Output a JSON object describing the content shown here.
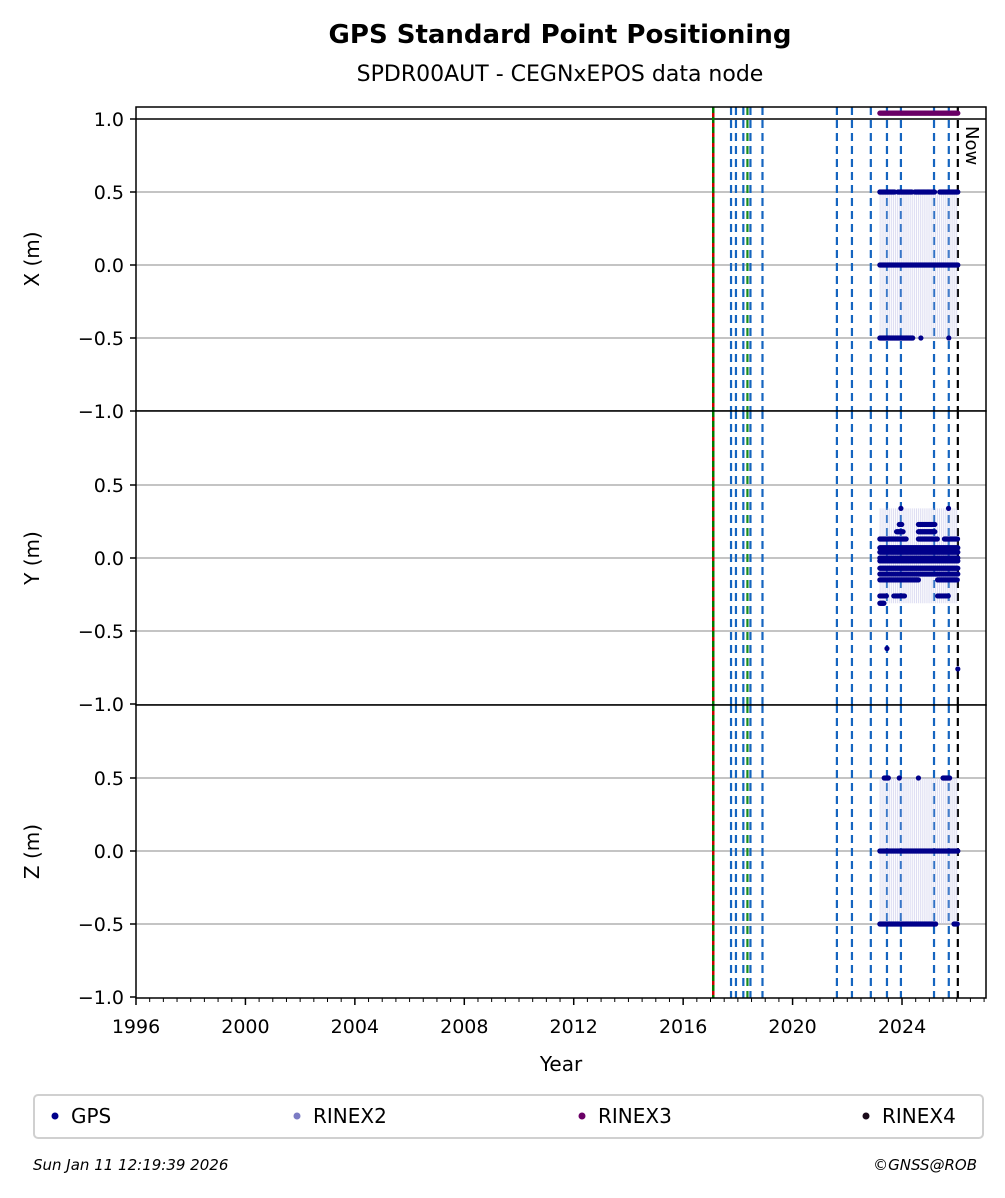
{
  "chart_data": {
    "type": "scatter",
    "title": "GPS Standard Point Positioning",
    "subtitle": "SPDR00AUT - CEGNxEPOS data node",
    "xlabel": "Year",
    "xlim": [
      1996,
      2027.07
    ],
    "xticks": [
      "1996",
      "2000",
      "2004",
      "2008",
      "2012",
      "2016",
      "2020",
      "2024"
    ],
    "xtick_values": [
      1996,
      2000,
      2004,
      2008,
      2012,
      2016,
      2020,
      2024
    ],
    "panels": [
      {
        "ylabel": "X (m)",
        "ylim": [
          -1.0,
          1.08
        ],
        "yticks": [
          "1.0",
          "0.5",
          "0.0",
          "−0.5",
          "−1.0"
        ],
        "ytick_values": [
          1.0,
          0.5,
          0.0,
          -0.5,
          -1.0
        ],
        "gps_segments": [
          {
            "y": 0.0,
            "from": 2023.19,
            "to": 2026.04
          },
          {
            "y": 0.5,
            "from": 2023.19,
            "to": 2023.74
          },
          {
            "y": 0.5,
            "from": 2023.85,
            "to": 2024.36
          },
          {
            "y": 0.5,
            "from": 2024.47,
            "to": 2025.2
          },
          {
            "y": 0.5,
            "from": 2025.38,
            "to": 2026.04
          },
          {
            "y": -0.5,
            "from": 2023.19,
            "to": 2024.4
          },
          {
            "y": -0.5,
            "from": 2024.69,
            "to": 2024.69
          },
          {
            "y": -0.5,
            "from": 2025.71,
            "to": 2025.71
          }
        ],
        "rinex3_segments": [
          {
            "y": 1.04,
            "from": 2023.19,
            "to": 2026.04
          }
        ]
      },
      {
        "ylabel": "Y (m)",
        "ylim": [
          -1.0,
          1.0
        ],
        "yticks": [
          "0.5",
          "0.0",
          "−0.5",
          "−1.0"
        ],
        "ytick_values": [
          0.5,
          0.0,
          -0.5,
          -1.0
        ],
        "gps_segments": [
          {
            "y": 0.13,
            "from": 2023.19,
            "to": 2024.15
          },
          {
            "y": 0.13,
            "from": 2024.6,
            "to": 2025.3
          },
          {
            "y": 0.13,
            "from": 2025.55,
            "to": 2026.04
          },
          {
            "y": 0.07,
            "from": 2023.19,
            "to": 2026.04
          },
          {
            "y": 0.04,
            "from": 2023.19,
            "to": 2026.04
          },
          {
            "y": 0.0,
            "from": 2023.19,
            "to": 2026.04
          },
          {
            "y": -0.02,
            "from": 2023.19,
            "to": 2026.04
          },
          {
            "y": -0.07,
            "from": 2023.19,
            "to": 2026.04
          },
          {
            "y": -0.11,
            "from": 2023.19,
            "to": 2026.04
          },
          {
            "y": -0.15,
            "from": 2023.19,
            "to": 2024.6
          },
          {
            "y": -0.15,
            "from": 2025.3,
            "to": 2026.04
          },
          {
            "y": -0.26,
            "from": 2023.19,
            "to": 2023.45
          },
          {
            "y": -0.26,
            "from": 2023.7,
            "to": 2024.1
          },
          {
            "y": -0.26,
            "from": 2025.3,
            "to": 2025.7
          },
          {
            "y": -0.31,
            "from": 2023.19,
            "to": 2023.35
          },
          {
            "y": 0.18,
            "from": 2023.8,
            "to": 2024.05
          },
          {
            "y": 0.18,
            "from": 2024.6,
            "to": 2025.2
          },
          {
            "y": 0.23,
            "from": 2023.9,
            "to": 2024.0
          },
          {
            "y": 0.23,
            "from": 2024.6,
            "to": 2025.2
          },
          {
            "y": 0.34,
            "from": 2023.96,
            "to": 2023.96
          },
          {
            "y": 0.34,
            "from": 2025.7,
            "to": 2025.7
          },
          {
            "y": -0.62,
            "from": 2023.45,
            "to": 2023.45
          },
          {
            "y": -0.76,
            "from": 2026.04,
            "to": 2026.04
          }
        ],
        "rinex3_segments": []
      },
      {
        "ylabel": "Z (m)",
        "ylim": [
          -1.0,
          1.0
        ],
        "yticks": [
          "0.5",
          "0.0",
          "−0.5",
          "−1.0"
        ],
        "ytick_values": [
          0.5,
          0.0,
          -0.5,
          -1.0
        ],
        "gps_segments": [
          {
            "y": 0.0,
            "from": 2023.19,
            "to": 2026.04
          },
          {
            "y": -0.5,
            "from": 2023.19,
            "to": 2025.25
          },
          {
            "y": -0.5,
            "from": 2025.9,
            "to": 2026.04
          },
          {
            "y": 0.5,
            "from": 2023.35,
            "to": 2023.5
          },
          {
            "y": 0.5,
            "from": 2023.9,
            "to": 2023.9
          },
          {
            "y": 0.5,
            "from": 2024.6,
            "to": 2024.6
          },
          {
            "y": 0.5,
            "from": 2025.5,
            "to": 2025.75
          }
        ],
        "rinex3_segments": []
      }
    ],
    "event_lines": [
      {
        "x": 2017.1,
        "style": "red-green"
      },
      {
        "x": 2017.75,
        "style": "blue"
      },
      {
        "x": 2017.93,
        "style": "blue"
      },
      {
        "x": 2018.2,
        "style": "blue"
      },
      {
        "x": 2018.35,
        "style": "green"
      },
      {
        "x": 2018.46,
        "style": "blue"
      },
      {
        "x": 2018.9,
        "style": "blue"
      },
      {
        "x": 2021.62,
        "style": "blue"
      },
      {
        "x": 2022.17,
        "style": "blue"
      },
      {
        "x": 2022.86,
        "style": "blue"
      },
      {
        "x": 2023.45,
        "style": "blue"
      },
      {
        "x": 2023.96,
        "style": "blue"
      },
      {
        "x": 2025.17,
        "style": "blue"
      },
      {
        "x": 2025.71,
        "style": "blue"
      },
      {
        "x": 2026.04,
        "style": "black"
      }
    ],
    "now_label": "Now",
    "legend": [
      {
        "label": "GPS",
        "color": "#00008b"
      },
      {
        "label": "RINEX2",
        "color": "#7b7bc4"
      },
      {
        "label": "RINEX3",
        "color": "#6a0066"
      },
      {
        "label": "RINEX4",
        "color": "#1a0a1a"
      }
    ],
    "legend_placement": "bottom",
    "grid": true
  },
  "footer": {
    "timestamp": "Sun Jan 11 12:19:39 2026",
    "copyright": "©GNSS@ROB"
  }
}
